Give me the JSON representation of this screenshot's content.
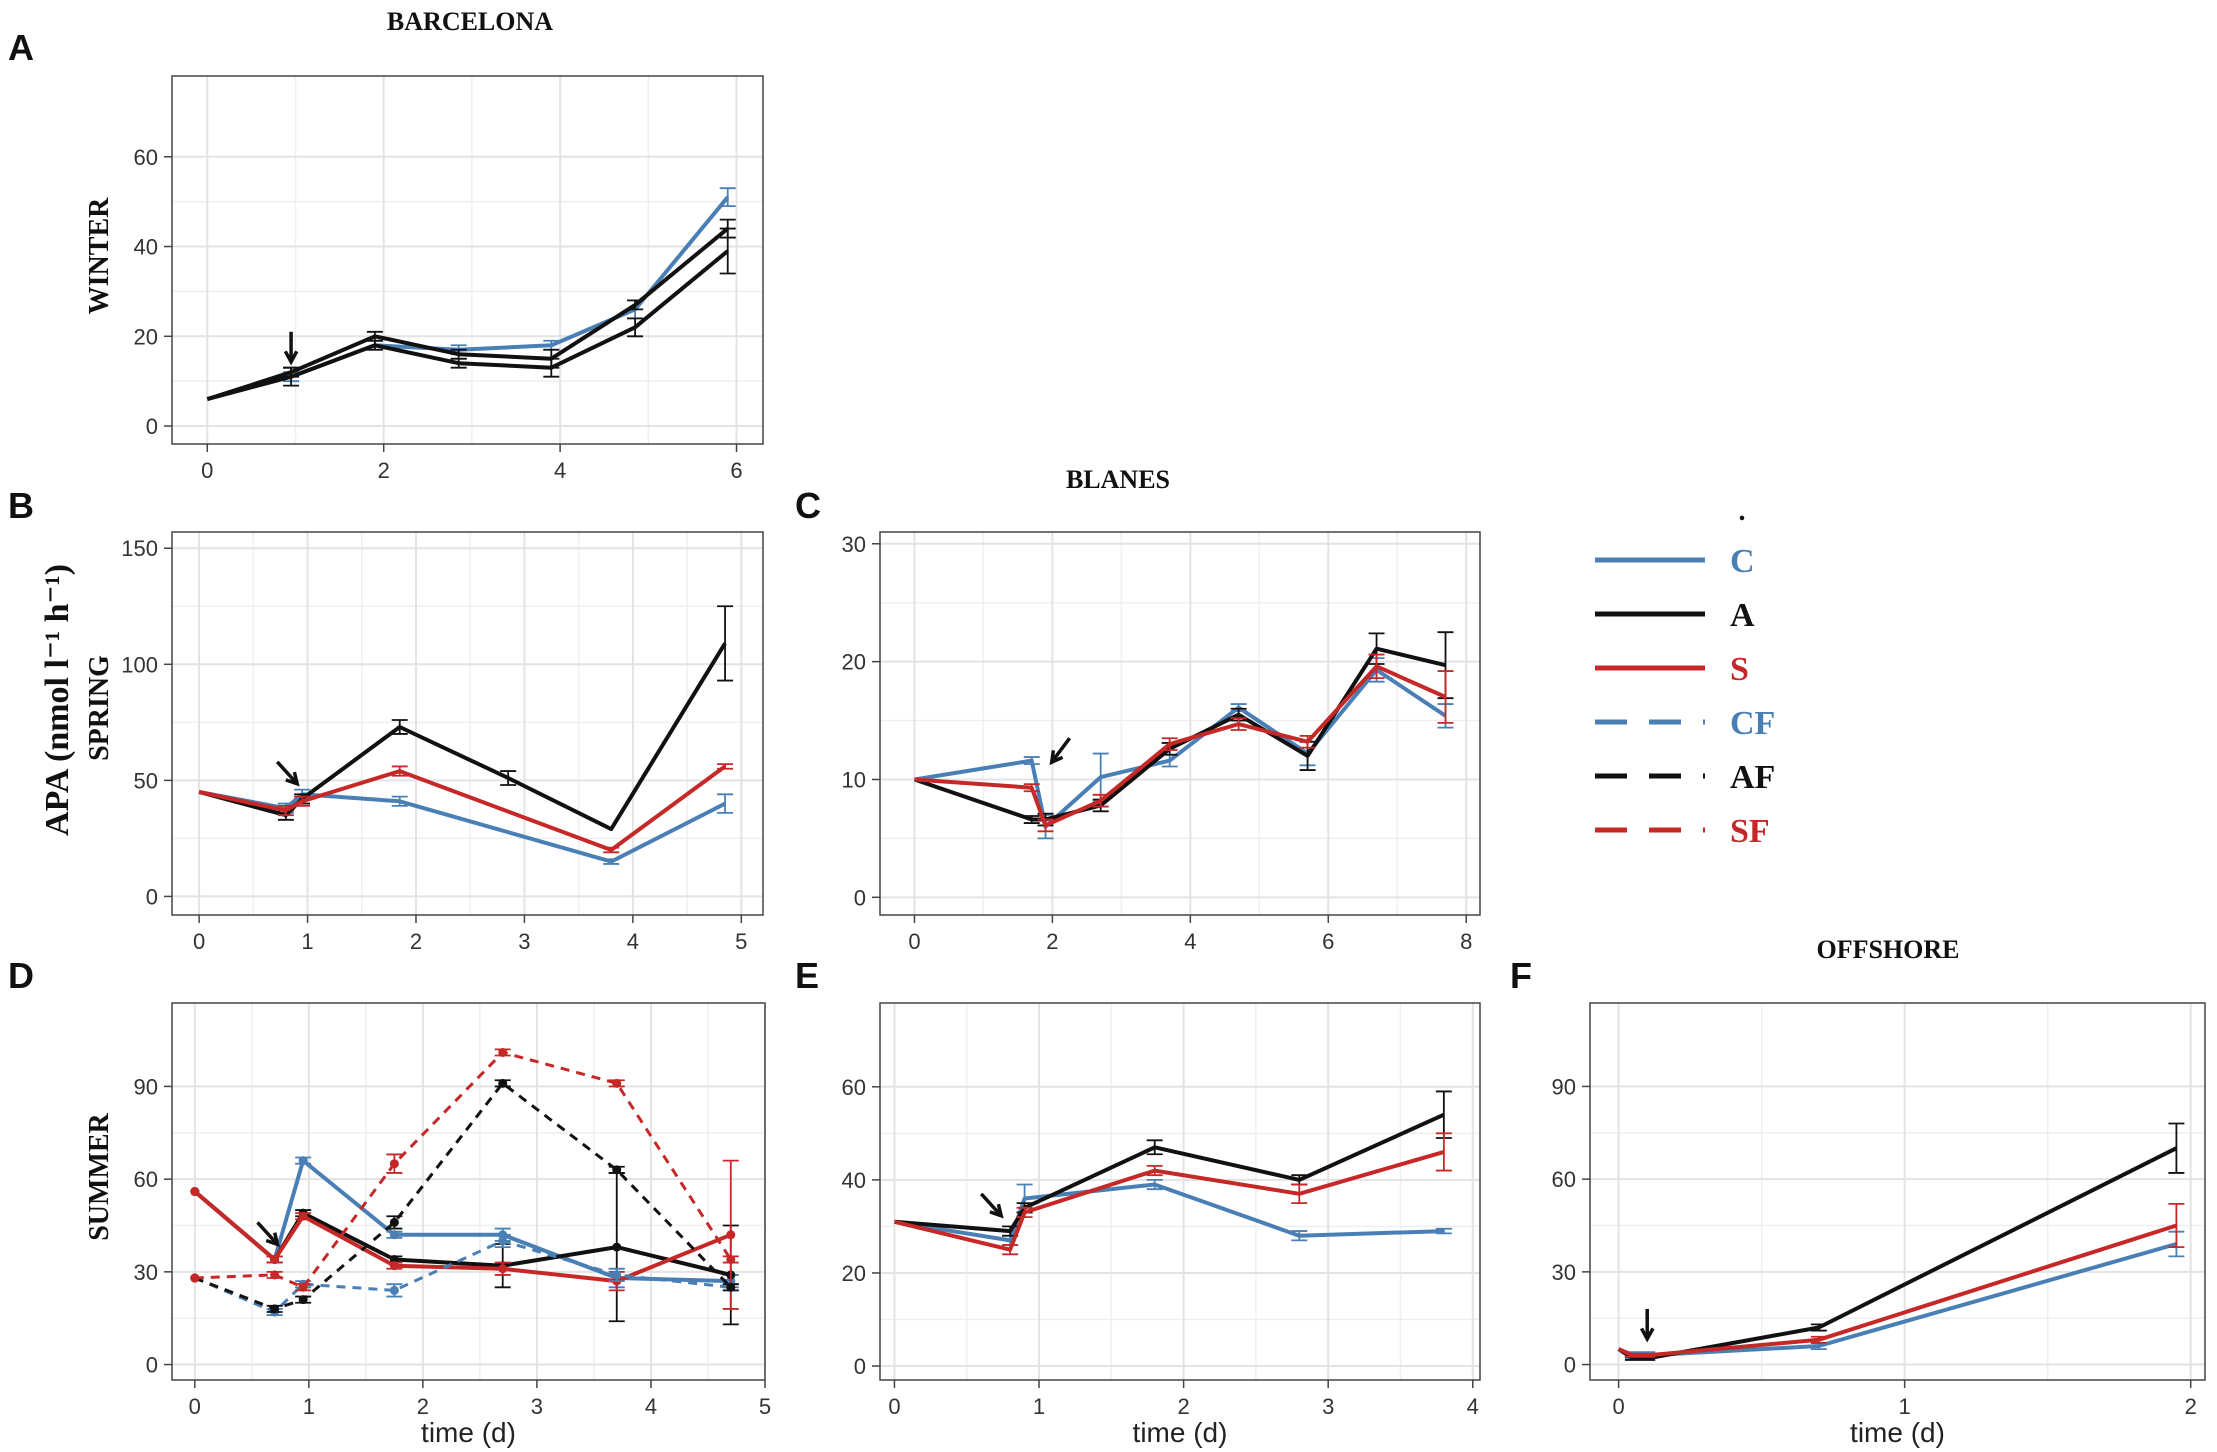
{
  "colors": {
    "C": "#4a7fb5",
    "A": "#111111",
    "S": "#c62828",
    "grid": "#e3e3e3",
    "frame": "#444444",
    "tick_text": "#333333"
  },
  "labels": {
    "y_axis": "APA (nmol l⁻¹ h⁻¹)",
    "row_winter": "WINTER",
    "row_spring": "SPRING",
    "row_summer": "SUMMER",
    "legend_dot": "."
  },
  "legend": [
    {
      "key": "C",
      "label": "C",
      "dash": false
    },
    {
      "key": "A",
      "label": "A",
      "dash": false
    },
    {
      "key": "S",
      "label": "S",
      "dash": false
    },
    {
      "key": "C",
      "label": "CF",
      "dash": true
    },
    {
      "key": "A",
      "label": "AF",
      "dash": true
    },
    {
      "key": "S",
      "label": "SF",
      "dash": true
    }
  ],
  "chart_data": [
    {
      "id": "A",
      "type": "line",
      "panel_letter": "A",
      "title": "BARCELONA",
      "xlabel": "",
      "xlim": [
        -0.4,
        6.3
      ],
      "ylim": [
        -4,
        78
      ],
      "xticks": [
        0,
        2,
        4,
        6
      ],
      "yticks": [
        0,
        20,
        40,
        60
      ],
      "arrow": {
        "x": 0.95,
        "y": 21,
        "dir": "down"
      },
      "series": [
        {
          "name": "C",
          "dash": false,
          "x": [
            0,
            0.95,
            1.9,
            2.85,
            3.9,
            4.85,
            5.9
          ],
          "y": [
            6,
            11,
            18,
            17,
            18,
            26,
            51
          ],
          "err": [
            0,
            1,
            1,
            1,
            1,
            2,
            2
          ]
        },
        {
          "name": "A",
          "dash": false,
          "x": [
            0,
            0.95,
            1.9,
            2.85,
            3.9,
            4.85,
            5.9
          ],
          "y": [
            6,
            12,
            20,
            16,
            15,
            27,
            44
          ],
          "err": [
            0,
            1,
            1,
            1,
            2,
            1,
            2
          ]
        },
        {
          "name": "A",
          "dash": false,
          "x": [
            0,
            0.95,
            1.9,
            2.85,
            3.9,
            4.85,
            5.9
          ],
          "y": [
            6,
            11,
            18,
            14,
            13,
            22,
            39
          ],
          "err": [
            0,
            2,
            1,
            1,
            2,
            2,
            5
          ]
        }
      ]
    },
    {
      "id": "B",
      "type": "line",
      "panel_letter": "B",
      "title": "",
      "xlabel": "",
      "xlim": [
        -0.25,
        5.2
      ],
      "ylim": [
        -8,
        157
      ],
      "xticks": [
        0,
        1,
        2,
        3,
        4,
        5
      ],
      "yticks": [
        0,
        50,
        100,
        150
      ],
      "arrow": {
        "x": 0.72,
        "y": 58,
        "dir": "down-right"
      },
      "series": [
        {
          "name": "C",
          "dash": false,
          "x": [
            0,
            0.8,
            0.95,
            1.85,
            3.8,
            4.85
          ],
          "y": [
            45,
            38,
            44,
            41,
            15,
            40
          ],
          "err": [
            0,
            2,
            2,
            2,
            1,
            4
          ]
        },
        {
          "name": "A",
          "dash": false,
          "x": [
            0,
            0.8,
            0.95,
            1.85,
            2.85,
            3.8,
            4.85
          ],
          "y": [
            45,
            35,
            42,
            73,
            51,
            29,
            109
          ],
          "err": [
            0,
            2,
            2,
            3,
            3,
            0,
            16
          ]
        },
        {
          "name": "S",
          "dash": false,
          "x": [
            0,
            0.8,
            0.95,
            1.85,
            3.8,
            4.85
          ],
          "y": [
            45,
            37,
            41,
            54,
            20,
            56
          ],
          "err": [
            0,
            2,
            2,
            2,
            1,
            1
          ]
        }
      ]
    },
    {
      "id": "C",
      "type": "line",
      "panel_letter": "C",
      "title": "BLANES",
      "xlabel": "",
      "xlim": [
        -0.5,
        8.2
      ],
      "ylim": [
        -1.5,
        31
      ],
      "xticks": [
        0,
        2,
        4,
        6,
        8
      ],
      "yticks": [
        0,
        10,
        20,
        30
      ],
      "arrow": {
        "x": 2.25,
        "y": 13.5,
        "dir": "down-left"
      },
      "series": [
        {
          "name": "C",
          "dash": false,
          "x": [
            0,
            1.7,
            1.9,
            2.7,
            3.7,
            4.7,
            5.7,
            6.7,
            7.7
          ],
          "y": [
            10,
            11.6,
            6,
            10.2,
            11.6,
            16.1,
            12.2,
            19.3,
            15.4
          ],
          "err": [
            0,
            0.3,
            1,
            2,
            0.5,
            0.3,
            1,
            1,
            1
          ]
        },
        {
          "name": "A",
          "dash": false,
          "x": [
            0,
            1.7,
            1.9,
            2.7,
            3.7,
            4.7,
            5.7,
            6.7,
            7.7
          ],
          "y": [
            10,
            6.6,
            6.6,
            7.8,
            12.6,
            15.5,
            12,
            21.1,
            19.7
          ],
          "err": [
            0,
            0.3,
            0.5,
            0.5,
            0.5,
            0.5,
            1.2,
            1.3,
            2.8
          ]
        },
        {
          "name": "S",
          "dash": false,
          "x": [
            0,
            1.7,
            1.9,
            2.7,
            3.7,
            4.7,
            5.7,
            6.7,
            7.7
          ],
          "y": [
            10,
            9.3,
            6.1,
            8.2,
            13,
            14.7,
            13.2,
            19.6,
            17
          ],
          "err": [
            0,
            0.3,
            0.5,
            0.5,
            0.5,
            0.5,
            0.5,
            1,
            2.2
          ]
        }
      ]
    },
    {
      "id": "D",
      "type": "line",
      "panel_letter": "D",
      "title": "",
      "xlabel": "time (d)",
      "xlim": [
        -0.2,
        5.0
      ],
      "ylim": [
        -5,
        117
      ],
      "xticks": [
        0,
        1,
        2,
        3,
        4,
        5
      ],
      "yticks": [
        0,
        30,
        60,
        90
      ],
      "arrow": {
        "x": 0.55,
        "y": 46,
        "dir": "down-right"
      },
      "series": [
        {
          "name": "C",
          "dash": false,
          "x": [
            0,
            0.7,
            0.95,
            1.75,
            2.7,
            3.7,
            4.7
          ],
          "y": [
            56,
            34,
            66,
            42,
            42,
            28,
            27
          ],
          "err": [
            0,
            1,
            1,
            1,
            2,
            3,
            2
          ]
        },
        {
          "name": "A",
          "dash": false,
          "x": [
            0,
            0.7,
            0.95,
            1.75,
            2.7,
            3.7,
            4.7
          ],
          "y": [
            56,
            34,
            49,
            34,
            32,
            38,
            29
          ],
          "err": [
            0,
            1,
            1,
            1,
            7,
            24,
            16
          ]
        },
        {
          "name": "S",
          "dash": false,
          "x": [
            0,
            0.7,
            0.95,
            1.75,
            2.7,
            3.7,
            4.7
          ],
          "y": [
            56,
            34,
            48,
            32,
            31,
            27,
            42
          ],
          "err": [
            0,
            1,
            1,
            1,
            2,
            3,
            24
          ]
        },
        {
          "name": "C",
          "dash": true,
          "x": [
            0,
            0.7,
            0.95,
            1.75,
            2.7,
            3.7,
            4.7
          ],
          "y": [
            28,
            17,
            26,
            24,
            40,
            29,
            25
          ],
          "err": [
            0,
            1,
            1,
            2,
            2,
            2,
            1
          ]
        },
        {
          "name": "A",
          "dash": true,
          "x": [
            0,
            0.7,
            0.95,
            1.75,
            2.7,
            3.7,
            4.7
          ],
          "y": [
            28,
            18,
            21,
            46,
            91,
            63,
            25
          ],
          "err": [
            0,
            1,
            1,
            2,
            1,
            1,
            1
          ]
        },
        {
          "name": "S",
          "dash": true,
          "x": [
            0,
            0.7,
            0.95,
            1.75,
            2.7,
            3.7,
            4.7
          ],
          "y": [
            28,
            29,
            25,
            65,
            101,
            91,
            34
          ],
          "err": [
            0,
            1,
            1,
            3,
            1,
            1,
            1
          ]
        }
      ]
    },
    {
      "id": "E",
      "type": "line",
      "panel_letter": "E",
      "title": "",
      "xlabel": "time (d)",
      "xlim": [
        -0.1,
        4.05
      ],
      "ylim": [
        -3,
        78
      ],
      "xticks": [
        0,
        1,
        2,
        3,
        4
      ],
      "yticks": [
        0,
        20,
        40,
        60
      ],
      "arrow": {
        "x": 0.6,
        "y": 37,
        "dir": "down-right"
      },
      "series": [
        {
          "name": "C",
          "dash": false,
          "x": [
            0,
            0.8,
            0.9,
            1.8,
            2.8,
            3.8
          ],
          "y": [
            31,
            27,
            36,
            39,
            28,
            29
          ],
          "err": [
            0,
            1,
            3,
            1,
            1,
            0.5
          ]
        },
        {
          "name": "A",
          "dash": false,
          "x": [
            0,
            0.8,
            0.9,
            1.8,
            2.8,
            3.8
          ],
          "y": [
            31,
            29,
            34,
            47,
            40,
            54
          ],
          "err": [
            0,
            1,
            1,
            1.5,
            1,
            5
          ]
        },
        {
          "name": "S",
          "dash": false,
          "x": [
            0,
            0.8,
            0.9,
            1.8,
            2.8,
            3.8
          ],
          "y": [
            31,
            25,
            33,
            42,
            37,
            46
          ],
          "err": [
            0,
            1,
            1,
            1,
            2,
            4
          ]
        }
      ]
    },
    {
      "id": "F",
      "type": "line",
      "panel_letter": "F",
      "title": "OFFSHORE",
      "xlabel": "time (d)",
      "xlim": [
        -0.1,
        2.05
      ],
      "ylim": [
        -5,
        117
      ],
      "xticks": [
        0,
        1,
        2
      ],
      "yticks": [
        0,
        30,
        60,
        90
      ],
      "arrow": {
        "x": 0.1,
        "y": 18,
        "dir": "down"
      },
      "series": [
        {
          "name": "C",
          "dash": false,
          "x": [
            0,
            0.05,
            0.1,
            0.7,
            1.95
          ],
          "y": [
            5,
            3,
            3,
            6,
            39
          ],
          "err": [
            0,
            1,
            1,
            1,
            4
          ]
        },
        {
          "name": "A",
          "dash": false,
          "x": [
            0,
            0.05,
            0.1,
            0.7,
            1.95
          ],
          "y": [
            5,
            2,
            2,
            12,
            70
          ],
          "err": [
            0,
            0.5,
            0.5,
            1,
            8
          ]
        },
        {
          "name": "S",
          "dash": false,
          "x": [
            0,
            0.05,
            0.1,
            0.7,
            1.95
          ],
          "y": [
            5,
            3,
            3,
            8,
            45
          ],
          "err": [
            0,
            0.5,
            0.5,
            1,
            7
          ]
        }
      ]
    }
  ]
}
